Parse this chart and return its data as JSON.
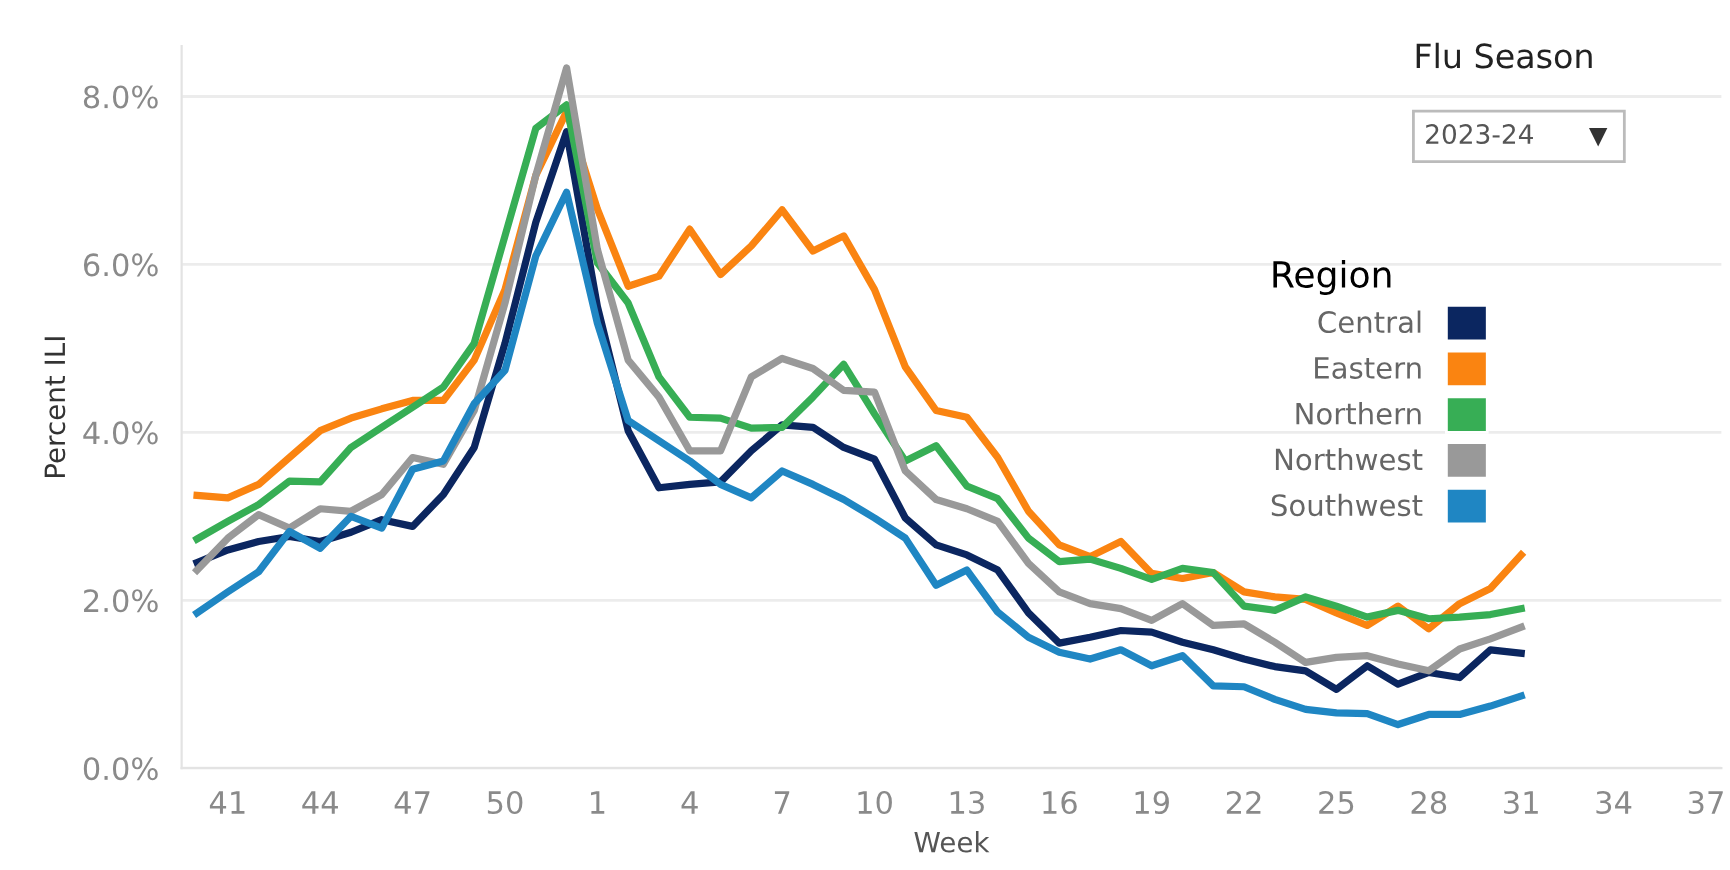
{
  "chart_data": {
    "type": "line",
    "xlabel": "Week",
    "ylabel": "Percent ILI",
    "legend_title": "Region",
    "legend": "right",
    "grid": "y",
    "marker": "none",
    "line_style": "solid",
    "annotations": [
      "Flu Season",
      "2023-24"
    ],
    "categories": [
      null,
      "41",
      null,
      null,
      "44",
      null,
      null,
      "47",
      null,
      null,
      "50",
      null,
      null,
      "1",
      null,
      null,
      "4",
      null,
      null,
      "7",
      null,
      null,
      "10",
      null,
      null,
      "13",
      null,
      null,
      "16",
      null,
      null,
      "19",
      null,
      null,
      "22",
      null,
      null,
      "25",
      null,
      null,
      "28",
      null,
      null,
      "31",
      null,
      null,
      "34",
      null,
      null,
      "37"
    ],
    "ylim": [
      0,
      8.6
    ],
    "yticks": [
      {
        "value": 0,
        "label": "0.0%"
      },
      {
        "value": 2,
        "label": "2.0%"
      },
      {
        "value": 4,
        "label": "4.0%"
      },
      {
        "value": 6,
        "label": "6.0%"
      },
      {
        "value": 8,
        "label": "8.0%"
      }
    ],
    "series": [
      {
        "name": "Central",
        "color": "#0b2660",
        "values": [
          2.45,
          2.6,
          2.7,
          2.76,
          2.7,
          2.81,
          2.96,
          2.88,
          3.26,
          3.82,
          5.06,
          6.5,
          7.58,
          5.5,
          4.02,
          3.34,
          3.38,
          3.41,
          3.78,
          4.09,
          4.06,
          3.82,
          3.68,
          2.98,
          2.66,
          2.54,
          2.36,
          1.85,
          1.49,
          1.56,
          1.64,
          1.62,
          1.5,
          1.41,
          1.3,
          1.21,
          1.16,
          0.94,
          1.22,
          1.0,
          1.14,
          1.08,
          1.41,
          1.37,
          null,
          null,
          null,
          null,
          null,
          null
        ]
      },
      {
        "name": "Eastern",
        "color": "#fa8411",
        "values": [
          3.25,
          3.22,
          3.38,
          3.7,
          4.02,
          4.17,
          4.28,
          4.38,
          4.38,
          4.86,
          5.7,
          7.06,
          7.82,
          6.66,
          5.74,
          5.86,
          6.42,
          5.88,
          6.22,
          6.65,
          6.16,
          6.34,
          5.7,
          4.78,
          4.26,
          4.18,
          3.7,
          3.06,
          2.66,
          2.52,
          2.7,
          2.32,
          2.26,
          2.33,
          2.1,
          2.04,
          2.01,
          1.85,
          1.7,
          1.93,
          1.66,
          1.96,
          2.14,
          2.54,
          null,
          null,
          null,
          null,
          null,
          null
        ]
      },
      {
        "name": "Northern",
        "color": "#37ae55",
        "values": [
          2.73,
          2.94,
          3.14,
          3.42,
          3.41,
          3.82,
          4.06,
          4.3,
          4.54,
          5.06,
          6.34,
          7.62,
          7.9,
          6.02,
          5.54,
          4.66,
          4.18,
          4.17,
          4.05,
          4.06,
          4.42,
          4.81,
          4.22,
          3.66,
          3.84,
          3.36,
          3.21,
          2.74,
          2.46,
          2.49,
          2.38,
          2.25,
          2.38,
          2.33,
          1.93,
          1.88,
          2.04,
          1.93,
          1.8,
          1.88,
          1.78,
          1.8,
          1.83,
          1.9,
          null,
          null,
          null,
          null,
          null,
          null
        ]
      },
      {
        "name": "Northwest",
        "color": "#999999",
        "values": [
          2.36,
          2.74,
          3.02,
          2.86,
          3.09,
          3.06,
          3.26,
          3.7,
          3.62,
          4.26,
          5.54,
          7.06,
          8.34,
          6.18,
          4.86,
          4.42,
          3.78,
          3.78,
          4.66,
          4.88,
          4.76,
          4.5,
          4.48,
          3.54,
          3.2,
          3.09,
          2.94,
          2.44,
          2.1,
          1.96,
          1.9,
          1.76,
          1.96,
          1.7,
          1.72,
          1.5,
          1.26,
          1.32,
          1.34,
          1.24,
          1.16,
          1.42,
          1.54,
          1.68,
          null,
          null,
          null,
          null,
          null,
          null
        ]
      },
      {
        "name": "Southwest",
        "color": "#1f86c3",
        "values": [
          1.85,
          2.1,
          2.34,
          2.82,
          2.62,
          3.0,
          2.86,
          3.56,
          3.66,
          4.34,
          4.74,
          6.1,
          6.86,
          5.3,
          4.14,
          3.9,
          3.66,
          3.38,
          3.22,
          3.54,
          3.38,
          3.2,
          2.98,
          2.74,
          2.18,
          2.36,
          1.86,
          1.56,
          1.38,
          1.3,
          1.41,
          1.22,
          1.34,
          0.98,
          0.97,
          0.82,
          0.7,
          0.66,
          0.65,
          0.52,
          0.64,
          0.64,
          0.74,
          0.86,
          null,
          null,
          null,
          null,
          null,
          null
        ]
      }
    ]
  }
}
